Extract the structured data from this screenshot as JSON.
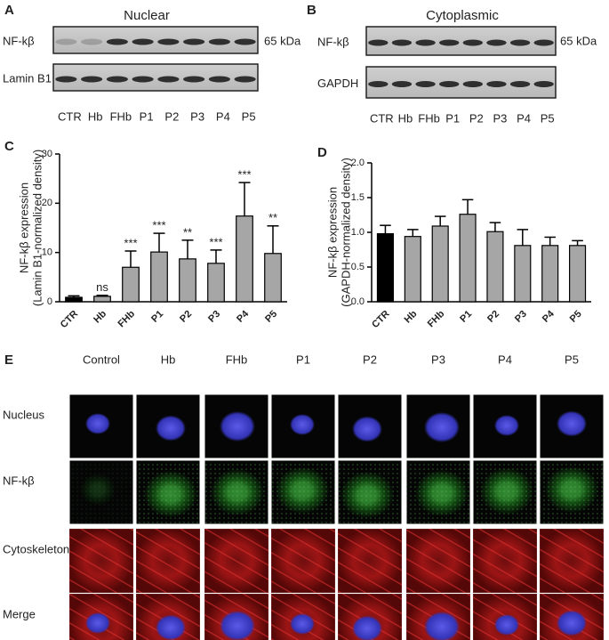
{
  "panel_labels": [
    "A",
    "B",
    "C",
    "D",
    "E"
  ],
  "blots": [
    {
      "title": "Nuclear",
      "rows": [
        "NF-kβ",
        "Lamin B1"
      ],
      "size_label": "65 kDa",
      "lanes": [
        "CTR",
        "Hb",
        "FHb",
        "P1",
        "P2",
        "P3",
        "P4",
        "P5"
      ]
    },
    {
      "title": "Cytoplasmic",
      "rows": [
        "NF-kβ",
        "GAPDH"
      ],
      "size_label": "65 kDa",
      "lanes": [
        "CTR",
        "Hb",
        "FHb",
        "P1",
        "P2",
        "P3",
        "P4",
        "P5"
      ]
    }
  ],
  "chart_data": [
    {
      "type": "bar",
      "y_label": [
        "NF-kβ expression",
        "(Lamin B1-normalized density)"
      ],
      "categories": [
        "CTR",
        "Hb",
        "FHb",
        "P1",
        "P2",
        "P3",
        "P4",
        "P5"
      ],
      "values": [
        0.9,
        1.1,
        7.0,
        10.1,
        8.7,
        7.8,
        17.4,
        9.8
      ],
      "errors": [
        0.3,
        0.2,
        3.3,
        3.8,
        3.8,
        2.7,
        6.8,
        5.6
      ],
      "annotations": [
        null,
        "ns",
        "***",
        "***",
        "**",
        "***",
        "***",
        "**"
      ],
      "colors": [
        "#000000",
        "#a6a6a6",
        "#a6a6a6",
        "#a6a6a6",
        "#a6a6a6",
        "#a6a6a6",
        "#a6a6a6",
        "#a6a6a6"
      ],
      "ylim": [
        0,
        30
      ],
      "yticks": [
        0,
        10,
        20,
        30
      ]
    },
    {
      "type": "bar",
      "y_label": [
        "NF-kβ expression",
        "(GAPDH-normalized density)"
      ],
      "categories": [
        "CTR",
        "Hb",
        "FHb",
        "P1",
        "P2",
        "P3",
        "P4",
        "P5"
      ],
      "values": [
        0.98,
        0.94,
        1.09,
        1.26,
        1.01,
        0.81,
        0.81,
        0.81
      ],
      "errors": [
        0.12,
        0.1,
        0.14,
        0.21,
        0.13,
        0.23,
        0.12,
        0.07
      ],
      "colors": [
        "#000000",
        "#a6a6a6",
        "#a6a6a6",
        "#a6a6a6",
        "#a6a6a6",
        "#a6a6a6",
        "#a6a6a6",
        "#a6a6a6"
      ],
      "ylim": [
        0,
        2.0
      ],
      "yticks": [
        {
          "value": 0,
          "label": "0.0"
        },
        0.5,
        {
          "value": 1.0,
          "label": "1.0"
        },
        1.5,
        {
          "value": 2.0,
          "label": "2.0"
        }
      ]
    }
  ],
  "microscopy": {
    "columns": [
      "Control",
      "Hb",
      "FHb",
      "P1",
      "P2",
      "P3",
      "P4",
      "P5"
    ],
    "rows": [
      "Nucleus",
      "NF-kβ",
      "Cytoskeleton",
      "Merge"
    ]
  }
}
